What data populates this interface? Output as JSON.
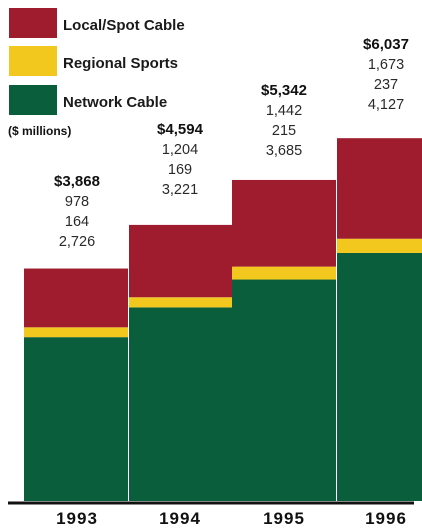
{
  "chart_data": {
    "type": "bar",
    "stacked": true,
    "unit_label": "($ millions)",
    "categories": [
      "1993",
      "1994",
      "1995",
      "1996"
    ],
    "series": [
      {
        "name": "Network Cable",
        "color": "#0b5e3c",
        "values": [
          2726,
          3221,
          3685,
          4127
        ]
      },
      {
        "name": "Regional Sports",
        "color": "#f2c81e",
        "values": [
          164,
          169,
          215,
          237
        ]
      },
      {
        "name": "Local/Spot Cable",
        "color": "#9e1c2e",
        "values": [
          978,
          1204,
          1442,
          1673
        ]
      }
    ],
    "totals": [
      "$3,868",
      "$4,594",
      "$5,342",
      "$6,037"
    ],
    "component_labels": [
      [
        "978",
        "164",
        "2,726"
      ],
      [
        "1,204",
        "169",
        "3,221"
      ],
      [
        "1,442",
        "215",
        "3,685"
      ],
      [
        "1,673",
        "237",
        "4,127"
      ]
    ],
    "legend": [
      "Local/Spot Cable",
      "Regional Sports",
      "Network Cable"
    ],
    "legend_colors": [
      "#9e1c2e",
      "#f2c81e",
      "#0b5e3c"
    ],
    "ylim": [
      0,
      6500
    ],
    "grid": false,
    "legend_position": "top-left"
  }
}
